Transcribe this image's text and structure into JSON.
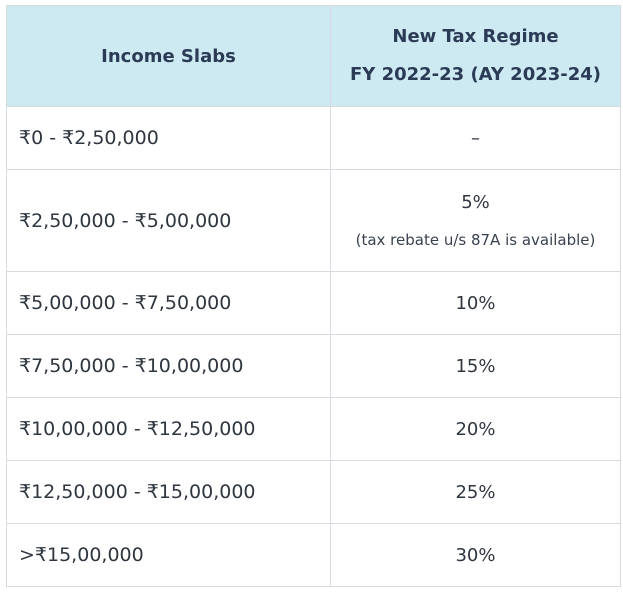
{
  "header": {
    "col1": "Income Slabs",
    "col2_line1": "New Tax Regime",
    "col2_line2": "FY 2022-23 (AY 2023-24)"
  },
  "rows": [
    {
      "slab": "₹0 - ₹2,50,000",
      "rate": "–",
      "note": ""
    },
    {
      "slab": "₹2,50,000 - ₹5,00,000",
      "rate": "5%",
      "note": "(tax rebate u/s 87A is available)"
    },
    {
      "slab": "₹5,00,000 - ₹7,50,000",
      "rate": "10%",
      "note": ""
    },
    {
      "slab": "₹7,50,000 - ₹10,00,000",
      "rate": "15%",
      "note": ""
    },
    {
      "slab": "₹10,00,000 - ₹12,50,000",
      "rate": "20%",
      "note": ""
    },
    {
      "slab": "₹12,50,000 - ₹15,00,000",
      "rate": "25%",
      "note": ""
    },
    {
      "slab": ">₹15,00,000",
      "rate": "30%",
      "note": ""
    }
  ]
}
